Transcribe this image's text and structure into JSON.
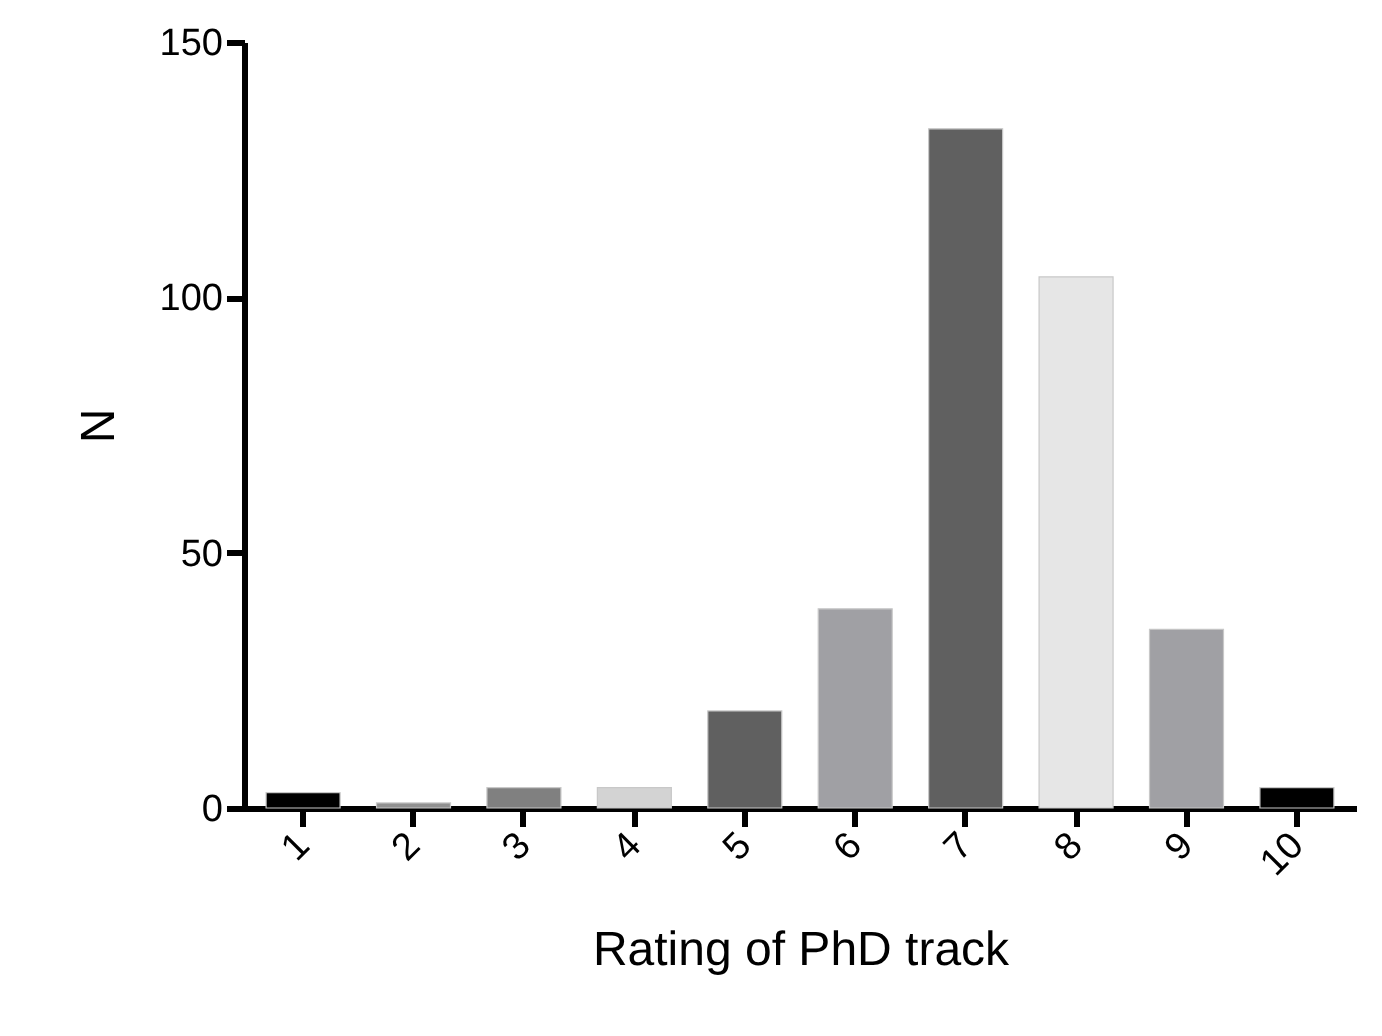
{
  "chart_data": {
    "type": "bar",
    "xlabel": "Rating of PhD track",
    "ylabel": "N",
    "categories": [
      "1",
      "2",
      "3",
      "4",
      "5",
      "6",
      "7",
      "8",
      "9",
      "10"
    ],
    "values": [
      3,
      1,
      4,
      4,
      19,
      39,
      133,
      104,
      35,
      4
    ],
    "colors": [
      "#000000",
      "#909090",
      "#808080",
      "#d3d3d3",
      "#606060",
      "#a0a0a4",
      "#606060",
      "#e6e6e6",
      "#a0a0a4",
      "#000000"
    ],
    "ylim": [
      0,
      150
    ],
    "yticks": [
      0,
      50,
      100,
      150
    ],
    "grid": false
  }
}
